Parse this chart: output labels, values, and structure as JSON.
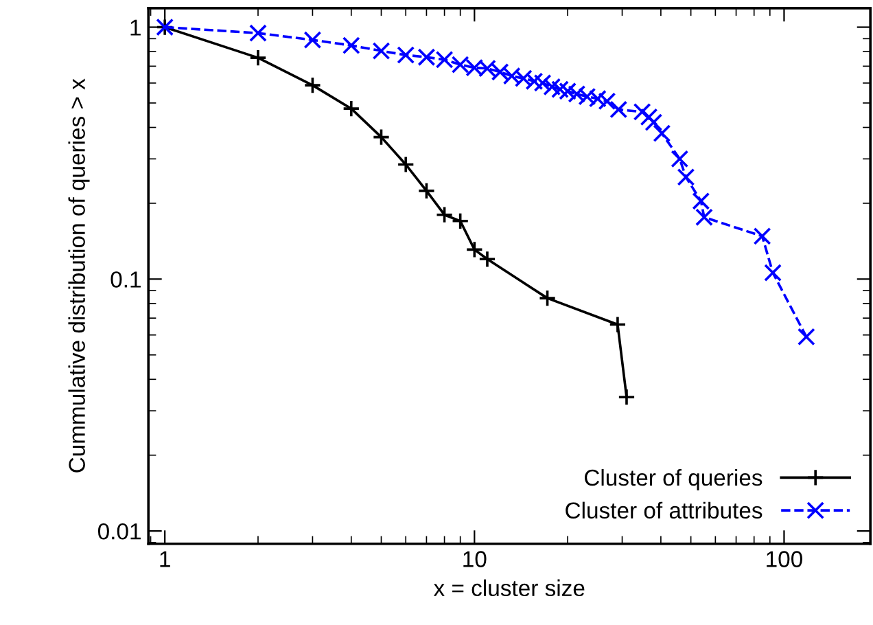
{
  "chart_data": {
    "type": "line",
    "xlabel": "x = cluster size",
    "ylabel": "Cummulative distribution of queries > x",
    "log": "xy",
    "xlim": [
      0.885,
      190
    ],
    "ylim": [
      0.0089,
      1.19
    ],
    "xticks": [
      1,
      10,
      100
    ],
    "yticks": [
      0.01,
      0.1,
      1
    ],
    "grid": false,
    "legend": "bottom right",
    "series": [
      {
        "name": "Cluster of queries",
        "color": "#000000",
        "marker": "plus",
        "line_style": "solid",
        "x": [
          1,
          2,
          3,
          4,
          5,
          6,
          7,
          8,
          9,
          10,
          11,
          17.2,
          29,
          31
        ],
        "values": [
          1,
          0.756,
          0.588,
          0.475,
          0.366,
          0.285,
          0.224,
          0.18,
          0.17,
          0.131,
          0.12,
          0.084,
          0.066,
          0.034
        ]
      },
      {
        "name": "Cluster of attributes",
        "color": "#0000ff",
        "marker": "cross",
        "line_style": "dashed",
        "x": [
          1,
          2,
          3,
          4,
          5,
          6,
          7,
          8,
          9,
          10,
          11,
          12.1,
          13.2,
          14.4,
          15.6,
          16.6,
          17.8,
          18.9,
          20,
          21.4,
          23.1,
          25,
          26.8,
          29.2,
          34.8,
          36.6,
          37.9,
          40.3,
          46,
          48.2,
          53.9,
          55.2,
          85,
          92,
          118
        ],
        "values": [
          1,
          0.947,
          0.89,
          0.846,
          0.805,
          0.775,
          0.76,
          0.743,
          0.71,
          0.69,
          0.686,
          0.664,
          0.64,
          0.626,
          0.61,
          0.6,
          0.58,
          0.566,
          0.557,
          0.543,
          0.53,
          0.52,
          0.508,
          0.471,
          0.461,
          0.44,
          0.419,
          0.379,
          0.3,
          0.254,
          0.204,
          0.176,
          0.148,
          0.106,
          0.059
        ]
      }
    ]
  }
}
